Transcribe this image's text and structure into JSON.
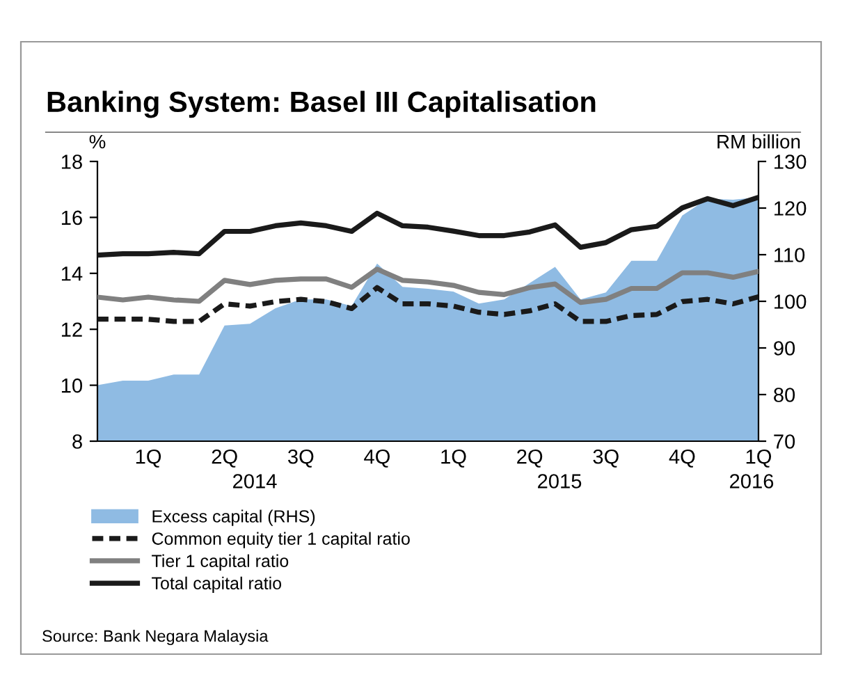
{
  "chart_data": {
    "type": "line",
    "title": "Banking System: Basel III Capitalisation",
    "ylabel": "%",
    "y2label": "RM billion",
    "categories": [
      null,
      null,
      "1Q",
      null,
      null,
      "2Q",
      null,
      null,
      "3Q",
      null,
      null,
      "4Q",
      null,
      null,
      "1Q",
      null,
      null,
      "2Q",
      null,
      null,
      "3Q",
      null,
      null,
      "4Q",
      null,
      null,
      "1Q"
    ],
    "ylim": [
      8,
      18
    ],
    "yticks": [
      8,
      10,
      12,
      14,
      16,
      18
    ],
    "y2lim": [
      70,
      130
    ],
    "y2ticks": [
      70,
      80,
      90,
      100,
      110,
      120,
      130
    ],
    "series": [
      {
        "name": "Excess capital (RHS)",
        "type": "area",
        "axis": "y2",
        "color": "#8fbbe3",
        "values": [
          82.0,
          83.0,
          83.0,
          84.3,
          84.3,
          94.8,
          95.2,
          98.5,
          100.4,
          100.4,
          99.0,
          108.1,
          103.1,
          102.7,
          102.1,
          99.5,
          100.4,
          103.9,
          107.4,
          100.4,
          101.9,
          108.7,
          108.7,
          118.4,
          122.0,
          121.8,
          122.3
        ]
      },
      {
        "name": "Common equity tier 1 capital ratio",
        "color": "#1a1a1a",
        "line_style": "dashed",
        "values": [
          12.36,
          12.36,
          12.36,
          12.28,
          12.28,
          12.91,
          12.83,
          12.99,
          13.07,
          12.99,
          12.74,
          13.49,
          12.91,
          12.91,
          12.83,
          12.61,
          12.53,
          12.66,
          12.91,
          12.28,
          12.28,
          12.49,
          12.53,
          12.99,
          13.07,
          12.91,
          13.16
        ]
      },
      {
        "name": "Tier 1 capital ratio",
        "color": "#808080",
        "line_style": "solid",
        "values": [
          13.15,
          13.05,
          13.15,
          13.05,
          13.0,
          13.75,
          13.6,
          13.75,
          13.8,
          13.8,
          13.5,
          14.15,
          13.75,
          13.69,
          13.57,
          13.32,
          13.24,
          13.49,
          13.62,
          12.96,
          13.07,
          13.46,
          13.46,
          14.02,
          14.02,
          13.86,
          14.07
        ]
      },
      {
        "name": "Total capital ratio",
        "color": "#1a1a1a",
        "line_style": "solid",
        "values": [
          14.65,
          14.7,
          14.7,
          14.75,
          14.7,
          15.5,
          15.5,
          15.7,
          15.8,
          15.7,
          15.5,
          16.15,
          15.7,
          15.65,
          15.51,
          15.35,
          15.35,
          15.48,
          15.73,
          14.93,
          15.1,
          15.56,
          15.68,
          16.34,
          16.67,
          16.42,
          16.72
        ]
      }
    ],
    "legend": "bottom",
    "grid": false,
    "annotations": [
      "2014",
      "2015",
      "2016",
      "Source: Bank Negara Malaysia"
    ]
  }
}
